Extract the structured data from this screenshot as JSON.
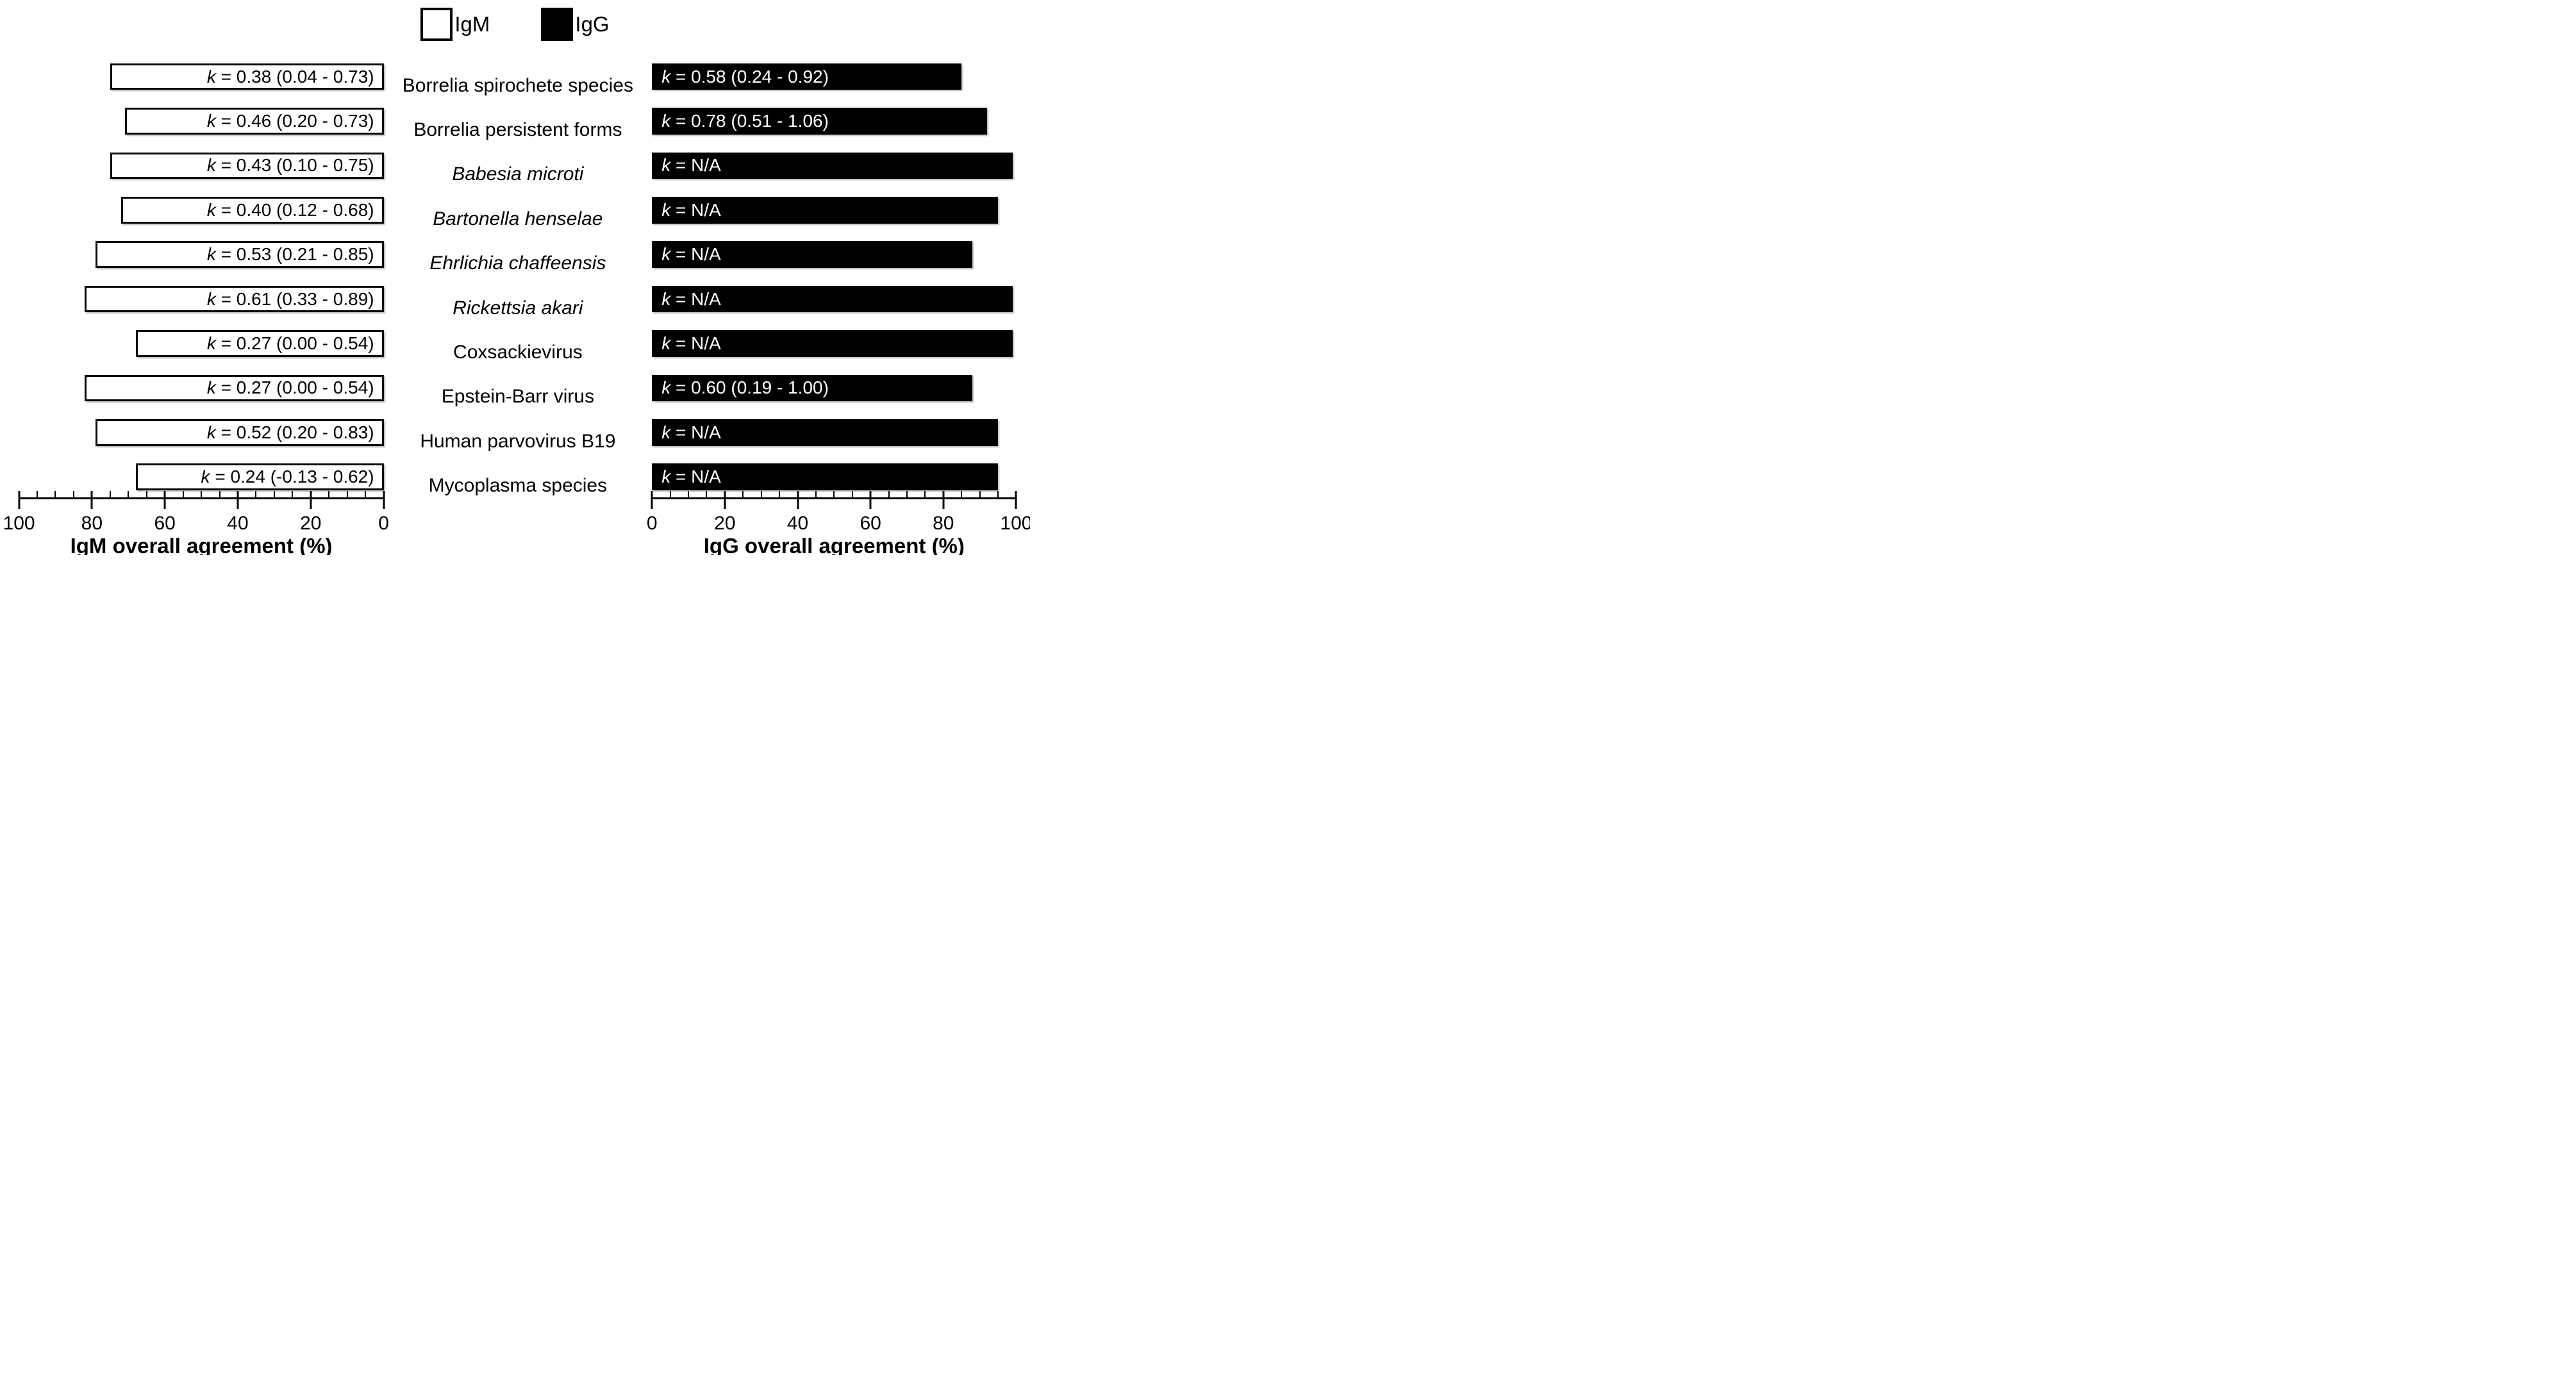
{
  "chart_data": {
    "type": "bar",
    "orientation": "horizontal-diverging",
    "legend": {
      "items": [
        {
          "label": "IgM",
          "fill": "#ffffff"
        },
        {
          "label": "IgG",
          "fill": "#000000"
        }
      ]
    },
    "categories": [
      "Borrelia spirochete species",
      "Borrelia persistent forms",
      "Babesia microti",
      "Bartonella henselae",
      "Ehrlichia chaffeensis",
      "Rickettsia akari",
      "Coxsackievirus",
      "Epstein-Barr virus",
      "Human parvovirus B19",
      "Mycoplasma species"
    ],
    "categories_italic": [
      false,
      false,
      true,
      true,
      true,
      true,
      false,
      false,
      false,
      false
    ],
    "series": [
      {
        "name": "IgM",
        "fill": "#ffffff",
        "text_color": "#000000",
        "axis": "left",
        "values": [
          75,
          71,
          75,
          72,
          79,
          82,
          68,
          82,
          79,
          68
        ],
        "bar_labels": [
          "k = 0.38 (0.04 - 0.73)",
          "k = 0.46 (0.20 - 0.73)",
          "k = 0.43 (0.10 - 0.75)",
          "k = 0.40 (0.12 - 0.68)",
          "k = 0.53 (0.21 - 0.85)",
          "k = 0.61 (0.33 - 0.89)",
          "k = 0.27 (0.00 - 0.54)",
          "k = 0.27 (0.00 - 0.54)",
          "k = 0.52 (0.20 - 0.83)",
          "k = 0.24 (-0.13 - 0.62)"
        ]
      },
      {
        "name": "IgG",
        "fill": "#000000",
        "text_color": "#ffffff",
        "axis": "right",
        "values": [
          85,
          92,
          99,
          95,
          88,
          99,
          99,
          88,
          95,
          95
        ],
        "bar_labels": [
          "k = 0.58 (0.24 - 0.92)",
          "k = 0.78 (0.51 - 1.06)",
          "k = N/A",
          "k = N/A",
          "k = N/A",
          "k = N/A",
          "k = N/A",
          "k = 0.60 (0.19 - 1.00)",
          "k = N/A",
          "k = N/A"
        ]
      }
    ],
    "axes": {
      "left": {
        "title": "IgM overall agreement (%)",
        "range": [
          0,
          100
        ],
        "reversed": true,
        "major_ticks": [
          100,
          80,
          60,
          40,
          20,
          0
        ],
        "minor_step": 5
      },
      "right": {
        "title": "IgG overall agreement (%)",
        "range": [
          0,
          100
        ],
        "reversed": false,
        "major_ticks": [
          0,
          20,
          40,
          60,
          80,
          100
        ],
        "minor_step": 5
      }
    }
  }
}
